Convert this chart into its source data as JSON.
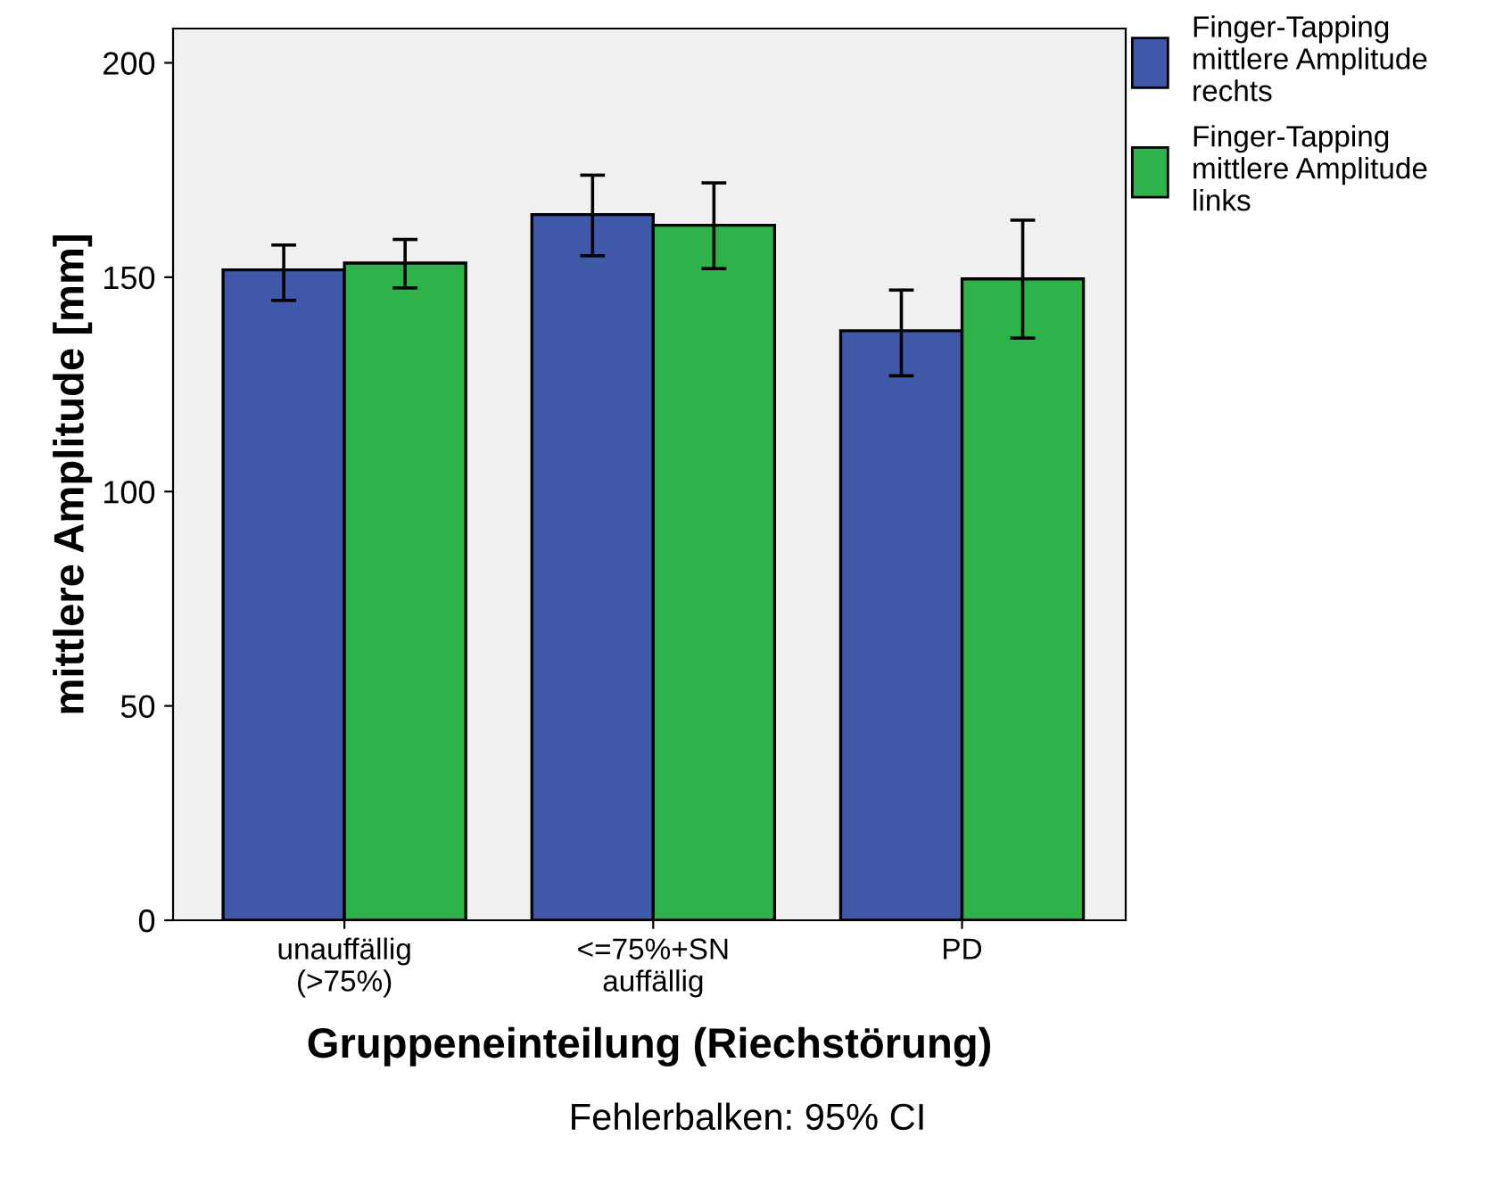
{
  "chart_data": {
    "type": "bar",
    "xlabel": "Gruppeneinteilung (Riechstörung)",
    "ylabel": "mittlere Amplitude [mm]",
    "categories": [
      "unauffällig\n(>75%)",
      "<=75%+SN\nauffällig",
      "PD"
    ],
    "series": [
      {
        "name": "Finger-Tapping\nmittlere Amplitude\nrechts",
        "color": "#3f58a8",
        "values": [
          151.7,
          164.6,
          137.5
        ],
        "errors": [
          [
            144.6,
            157.5
          ],
          [
            155,
            173.8
          ],
          [
            127,
            147
          ]
        ]
      },
      {
        "name": "Finger-Tapping\nmittlere Amplitude\nlinks",
        "color": "#2db34a",
        "values": [
          153.3,
          162.1,
          149.6
        ],
        "errors": [
          [
            147.5,
            158.8
          ],
          [
            152,
            172
          ],
          [
            135.8,
            163.3
          ]
        ]
      }
    ],
    "ylim": [
      0,
      208
    ],
    "yticks": [
      0,
      50,
      100,
      150,
      200
    ],
    "grid": false,
    "legend": "right",
    "annotations": [
      "Fehlerbalken: 95% CI"
    ]
  }
}
